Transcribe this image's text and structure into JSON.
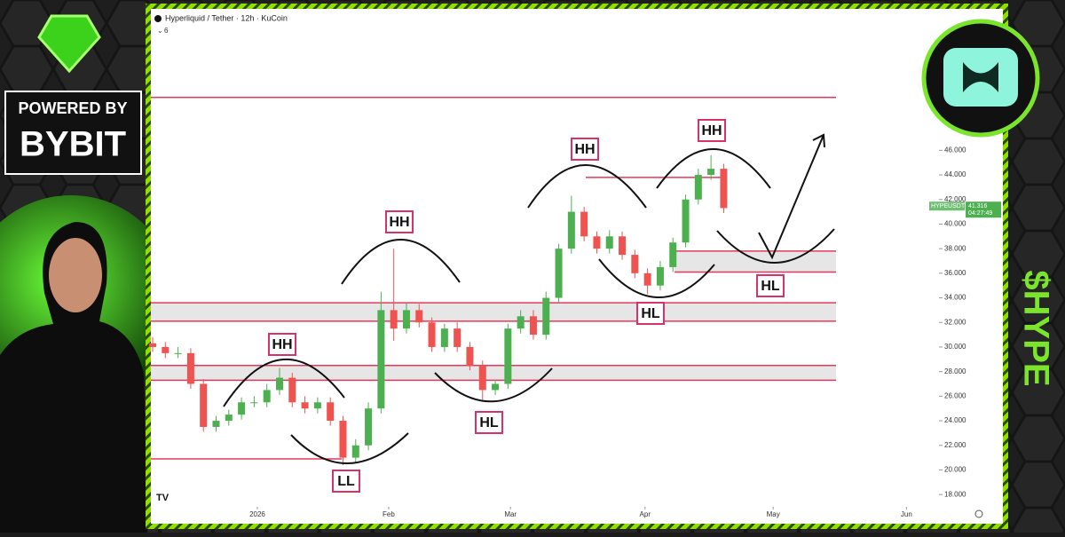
{
  "brand": {
    "powered_by": "POWERED BY",
    "name": "BYBIT"
  },
  "ticker_tag": "$HYPE",
  "chart_data": {
    "type": "candlestick",
    "title": "Hyperliquid / Tether · 12h · KuCoin",
    "indicator_count": 6,
    "symbol": "HYPEUSDT",
    "last_price": 41.316,
    "countdown": "04:27:49",
    "open": [
      30.3,
      30,
      29.5,
      29.5,
      27,
      23.5,
      24,
      24.5,
      25.5,
      25.5,
      26.5,
      27.5,
      25.5,
      25,
      25.5,
      24,
      21,
      22,
      25,
      33,
      31.5,
      33,
      32,
      30,
      31.5,
      30,
      28.5,
      26.5,
      27,
      31.5,
      32.5,
      31,
      34,
      38,
      41,
      39,
      38,
      39,
      37.5,
      36,
      35,
      36.5,
      38.5,
      42,
      44,
      44.5
    ],
    "high": [
      30.8,
      30.4,
      30,
      29.9,
      27.4,
      24.4,
      24.9,
      25.9,
      26,
      27,
      28.3,
      27.9,
      26,
      25.9,
      25.9,
      24.4,
      22.5,
      25.5,
      34.5,
      38,
      33.6,
      33.5,
      32.4,
      31.9,
      32,
      30.4,
      28.9,
      27.3,
      31.9,
      33,
      33,
      34.5,
      38.4,
      42.3,
      41.4,
      39.4,
      39.5,
      39.4,
      37.9,
      36.4,
      37,
      38.9,
      42.4,
      44.5,
      45.6,
      44.9
    ],
    "low": [
      29.6,
      29.1,
      29.1,
      26.6,
      23.1,
      23.1,
      23.6,
      24.1,
      25.1,
      25.1,
      26.1,
      25.1,
      24.6,
      24.6,
      23.6,
      20.4,
      20.6,
      21.6,
      24.6,
      30.5,
      31.1,
      31.6,
      29.6,
      29.6,
      29.6,
      28.1,
      25.7,
      26.1,
      26.6,
      31.1,
      30.6,
      30.6,
      33.6,
      37.6,
      38.6,
      37.6,
      37.6,
      37.1,
      35.6,
      34.3,
      34.6,
      36.1,
      38.1,
      41.6,
      43.6,
      40.9
    ],
    "close": [
      30,
      29.5,
      29.5,
      27,
      23.5,
      24,
      24.5,
      25.5,
      25.5,
      26.5,
      27.5,
      25.5,
      25,
      25.5,
      24,
      21,
      22,
      25,
      33,
      31.5,
      33,
      32,
      30,
      31.5,
      30,
      28.5,
      26.5,
      27,
      31.5,
      32.5,
      31,
      34,
      38,
      41,
      39,
      38,
      39,
      37.5,
      36,
      35,
      36.5,
      38.5,
      42,
      44,
      44.5,
      41.3
    ],
    "up_color": "#4caf50",
    "down_color": "#ef5350",
    "xlim": [
      0,
      67
    ],
    "xticks": [
      {
        "value": 8.25,
        "label": "2026"
      },
      {
        "value": 18.6,
        "label": "Feb"
      },
      {
        "value": 28.2,
        "label": "Mar"
      },
      {
        "value": 38.8,
        "label": "Apr"
      },
      {
        "value": 48.9,
        "label": "May"
      },
      {
        "value": 59.4,
        "label": "Jun"
      }
    ],
    "ylim": [
      17,
      57
    ],
    "yticks": [
      {
        "value": 18,
        "label": "18.000"
      },
      {
        "value": 20,
        "label": "20.000"
      },
      {
        "value": 22,
        "label": "22.000"
      },
      {
        "value": 24,
        "label": "24.000"
      },
      {
        "value": 26,
        "label": "26.000"
      },
      {
        "value": 28,
        "label": "28.000"
      },
      {
        "value": 30,
        "label": "30.000"
      },
      {
        "value": 32,
        "label": "32.000"
      },
      {
        "value": 34,
        "label": "34.000"
      },
      {
        "value": 36,
        "label": "36.000"
      },
      {
        "value": 38,
        "label": "38.000"
      },
      {
        "value": 40,
        "label": "40.000"
      },
      {
        "value": 42,
        "label": "42.000"
      },
      {
        "value": 44,
        "label": "44.000"
      },
      {
        "value": 46,
        "label": "46.000"
      }
    ],
    "level_color": "#e5395a",
    "levels": [
      50.3,
      43.8,
      20.9
    ],
    "zones": [
      [
        36.1,
        37.8
      ],
      [
        32.1,
        33.6
      ],
      [
        27.3,
        28.5
      ]
    ],
    "annotations": [
      "HH",
      "LL",
      "HH",
      "HL",
      "HH",
      "HL",
      "HH",
      "HL"
    ]
  }
}
